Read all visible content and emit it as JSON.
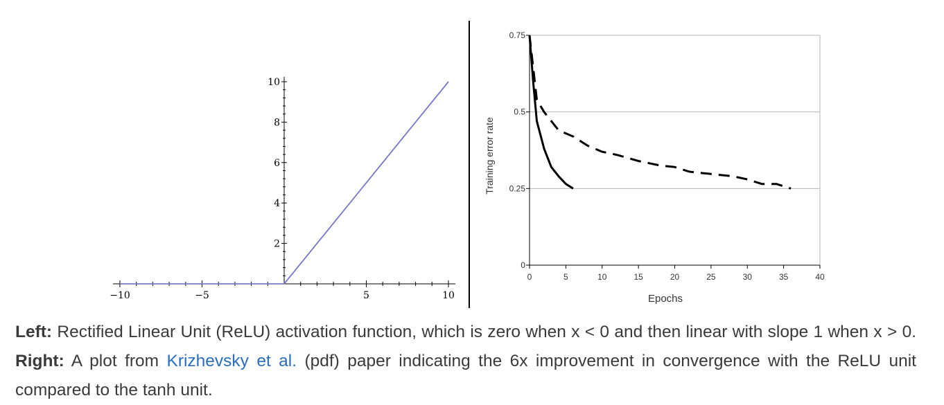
{
  "chart_data": [
    {
      "type": "line",
      "title": "",
      "xlabel": "",
      "ylabel": "",
      "xlim": [
        -10,
        10
      ],
      "ylim": [
        0,
        10
      ],
      "x_ticks": [
        -10,
        -5,
        5,
        10
      ],
      "y_ticks": [
        2,
        4,
        6,
        8,
        10
      ],
      "grid": false,
      "series": [
        {
          "x": [
            -10,
            0,
            10
          ],
          "y": [
            0,
            0,
            10
          ],
          "color": "#7777c8"
        }
      ]
    },
    {
      "type": "line",
      "title": "",
      "xlabel": "Epochs",
      "ylabel": "Training error rate",
      "xlim": [
        0,
        40
      ],
      "ylim": [
        0,
        0.75
      ],
      "x_ticks": [
        "0",
        "5",
        "10",
        "15",
        "20",
        "25",
        "30",
        "35",
        "40"
      ],
      "y_ticks": [
        "0",
        "0.25",
        "0.5",
        "0.75"
      ],
      "grid": true,
      "series": [
        {
          "style": "solid",
          "x": [
            0,
            0.5,
            1,
            2,
            3,
            4,
            5,
            6
          ],
          "y": [
            0.75,
            0.6,
            0.47,
            0.38,
            0.32,
            0.29,
            0.265,
            0.25
          ]
        },
        {
          "style": "dashed",
          "x": [
            0,
            1,
            2,
            4,
            6,
            8,
            10,
            12,
            15,
            18,
            20,
            22,
            24,
            26,
            28,
            30,
            32,
            34,
            36
          ],
          "y": [
            0.75,
            0.54,
            0.5,
            0.44,
            0.42,
            0.39,
            0.37,
            0.36,
            0.34,
            0.325,
            0.32,
            0.305,
            0.3,
            0.295,
            0.29,
            0.28,
            0.265,
            0.265,
            0.25
          ]
        }
      ]
    }
  ],
  "caption": {
    "left_label": "Left:",
    "left_text": "Rectified Linear Unit (ReLU) activation function, which is zero when x < 0 and then linear with slope 1 when x > 0.",
    "right_label": "Right:",
    "right_text_before": "A plot from",
    "link_text": "Krizhevsky et al.",
    "right_text_after": "(pdf) paper indicating the 6x improvement in convergence with the ReLU unit compared to the tanh unit."
  }
}
